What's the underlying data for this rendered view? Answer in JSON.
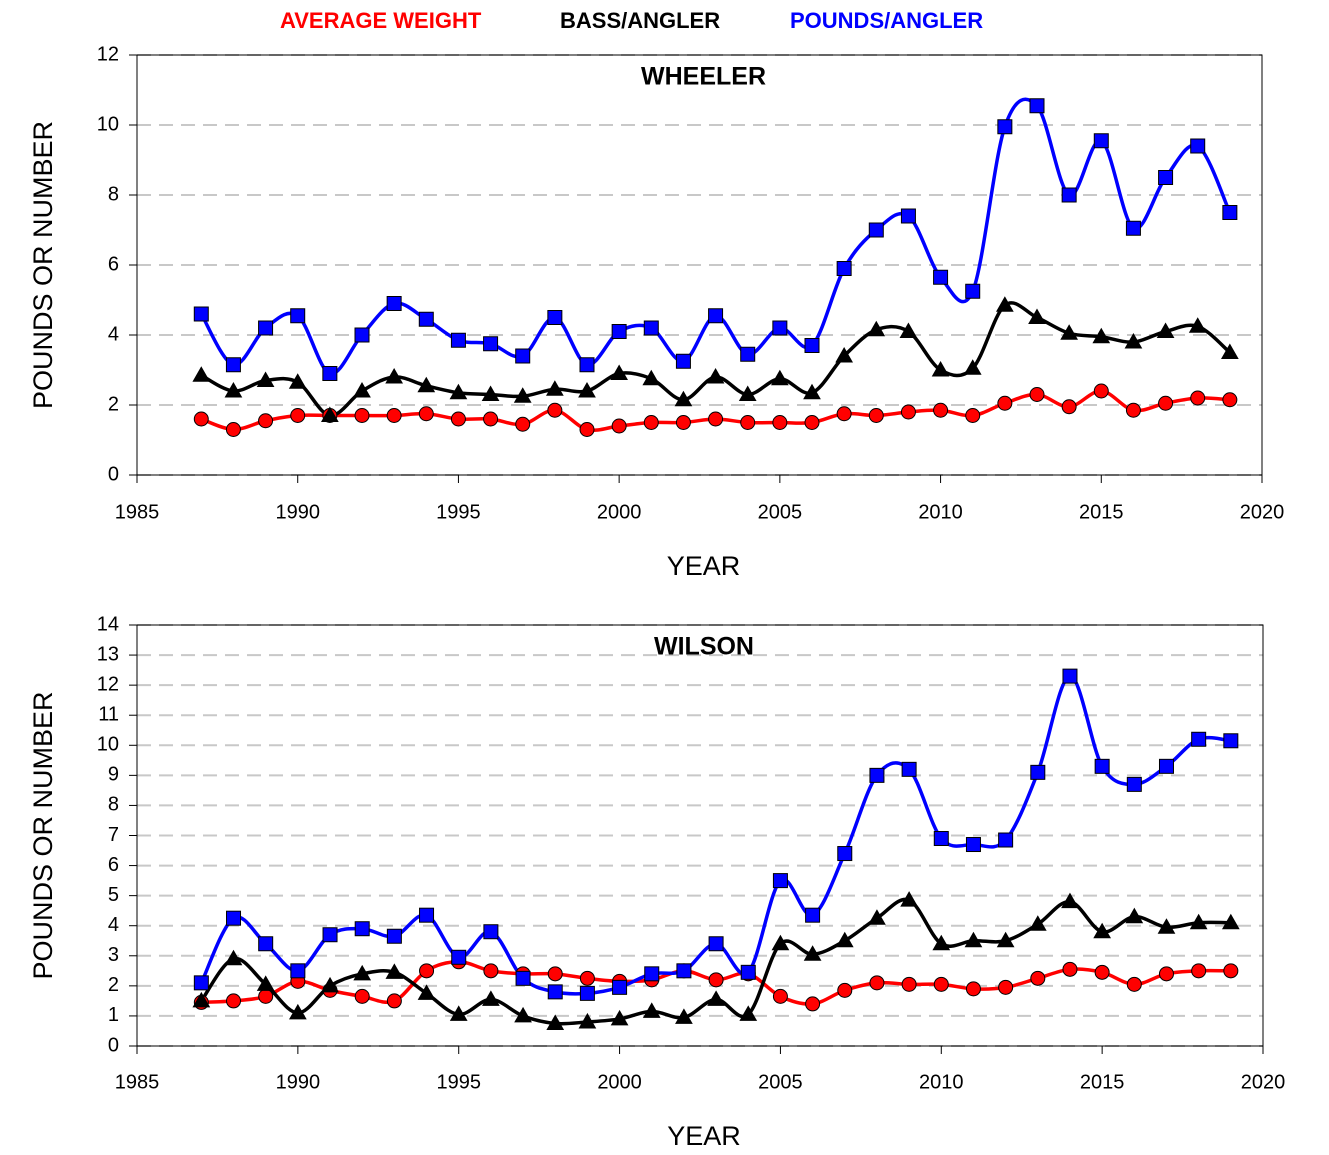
{
  "chart_data": [
    {
      "type": "line",
      "title": "WHEELER",
      "xlabel": "YEAR",
      "ylabel": "POUNDS OR NUMBER",
      "x": [
        1987,
        1988,
        1989,
        1990,
        1991,
        1992,
        1993,
        1994,
        1995,
        1996,
        1997,
        1998,
        1999,
        2000,
        2001,
        2002,
        2003,
        2004,
        2005,
        2006,
        2007,
        2008,
        2009,
        2010,
        2011,
        2012,
        2013,
        2014,
        2015,
        2016,
        2017,
        2018,
        2019
      ],
      "xlim": [
        1985,
        2020
      ],
      "xticks": [
        1985,
        1990,
        1995,
        2000,
        2005,
        2010,
        2015,
        2020
      ],
      "ylim": [
        0,
        12
      ],
      "yticks": [
        0,
        2,
        4,
        6,
        8,
        10,
        12
      ],
      "grid": true,
      "legend": "top",
      "series": [
        {
          "name": "AVERAGE WEIGHT",
          "color": "#ff0000",
          "marker": "circle",
          "values": [
            1.6,
            1.3,
            1.55,
            1.7,
            1.7,
            1.7,
            1.7,
            1.75,
            1.6,
            1.6,
            1.45,
            1.85,
            1.3,
            1.4,
            1.5,
            1.5,
            1.6,
            1.5,
            1.5,
            1.5,
            1.75,
            1.7,
            1.8,
            1.85,
            1.7,
            2.05,
            2.3,
            1.95,
            2.4,
            1.85,
            2.05,
            2.2,
            2.15
          ]
        },
        {
          "name": "BASS/ANGLER",
          "color": "#000000",
          "marker": "triangle",
          "values": [
            2.85,
            2.4,
            2.7,
            2.65,
            1.7,
            2.4,
            2.8,
            2.55,
            2.35,
            2.3,
            2.25,
            2.45,
            2.4,
            2.9,
            2.75,
            2.15,
            2.8,
            2.3,
            2.75,
            2.35,
            3.4,
            4.15,
            4.1,
            3.0,
            3.05,
            4.85,
            4.5,
            4.05,
            3.95,
            3.8,
            4.1,
            4.25,
            3.5
          ]
        },
        {
          "name": "POUNDS/ANGLER",
          "color": "#0000ff",
          "marker": "square",
          "values": [
            4.6,
            3.15,
            4.2,
            4.55,
            2.9,
            4.0,
            4.9,
            4.45,
            3.85,
            3.75,
            3.4,
            4.5,
            3.15,
            4.1,
            4.2,
            3.25,
            4.55,
            3.45,
            4.2,
            3.7,
            5.9,
            7.0,
            7.4,
            5.65,
            5.25,
            9.95,
            10.55,
            8.0,
            9.55,
            7.05,
            8.5,
            9.4,
            7.5
          ]
        }
      ]
    },
    {
      "type": "line",
      "title": "WILSON",
      "xlabel": "YEAR",
      "ylabel": "POUNDS OR NUMBER",
      "x": [
        1987,
        1988,
        1989,
        1990,
        1991,
        1992,
        1993,
        1994,
        1995,
        1996,
        1997,
        1998,
        1999,
        2000,
        2001,
        2002,
        2003,
        2004,
        2005,
        2006,
        2007,
        2008,
        2009,
        2010,
        2011,
        2012,
        2013,
        2014,
        2015,
        2016,
        2017,
        2018,
        2019
      ],
      "xlim": [
        1985,
        2020
      ],
      "xticks": [
        1985,
        1990,
        1995,
        2000,
        2005,
        2010,
        2015,
        2020
      ],
      "ylim": [
        0,
        14
      ],
      "yticks": [
        0,
        1,
        2,
        3,
        4,
        5,
        6,
        7,
        8,
        9,
        10,
        11,
        12,
        13,
        14
      ],
      "grid": true,
      "series": [
        {
          "color": "#ff0000",
          "marker": "circle",
          "values": [
            1.45,
            1.5,
            1.65,
            2.15,
            1.85,
            1.65,
            1.5,
            2.5,
            2.8,
            2.5,
            2.4,
            2.4,
            2.25,
            2.15,
            2.2,
            2.5,
            2.2,
            2.4,
            1.65,
            1.4,
            1.85,
            2.1,
            2.05,
            2.05,
            1.9,
            1.95,
            2.25,
            2.55,
            2.45,
            2.05,
            2.4,
            2.5,
            2.5
          ]
        },
        {
          "color": "#000000",
          "marker": "triangle",
          "values": [
            1.5,
            2.9,
            2.05,
            1.1,
            2.0,
            2.4,
            2.45,
            1.75,
            1.05,
            1.55,
            1.0,
            0.75,
            0.8,
            0.9,
            1.15,
            0.95,
            1.55,
            1.05,
            3.4,
            3.05,
            3.5,
            4.25,
            4.85,
            3.4,
            3.5,
            3.5,
            4.05,
            4.8,
            3.8,
            4.3,
            3.95,
            4.1,
            4.1
          ]
        },
        {
          "color": "#0000ff",
          "marker": "square",
          "values": [
            2.1,
            4.25,
            3.4,
            2.5,
            3.7,
            3.9,
            3.65,
            4.35,
            2.95,
            3.8,
            2.25,
            1.8,
            1.75,
            1.95,
            2.4,
            2.5,
            3.4,
            2.45,
            5.5,
            4.35,
            6.4,
            9.0,
            9.2,
            6.9,
            6.7,
            6.85,
            9.1,
            12.3,
            9.3,
            8.7,
            9.3,
            10.2,
            10.15
          ]
        }
      ]
    }
  ]
}
